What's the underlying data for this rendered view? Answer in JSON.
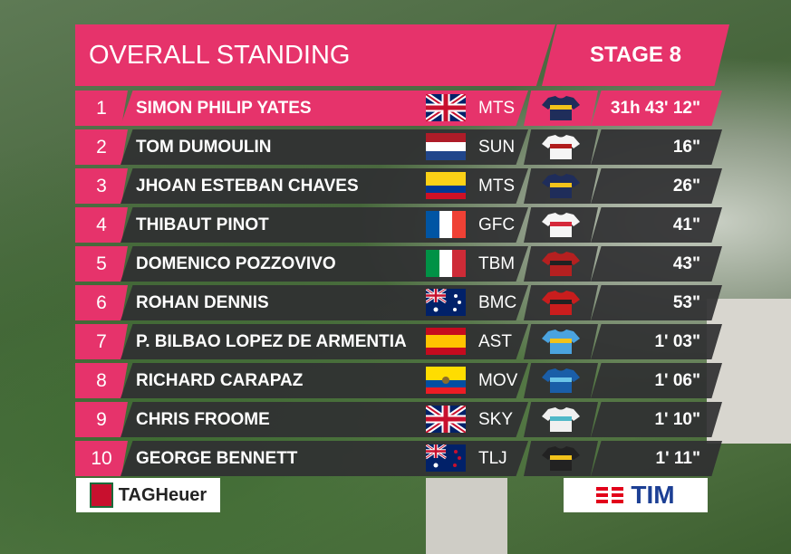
{
  "header": {
    "title": "OVERALL STANDING",
    "stage": "STAGE 8"
  },
  "table": {
    "rows": [
      {
        "rank": 1,
        "name": "SIMON PHILIP YATES",
        "team": "MTS",
        "time": "31h 43' 12\""
      },
      {
        "rank": 2,
        "name": "TOM DUMOULIN",
        "team": "SUN",
        "time": "16\""
      },
      {
        "rank": 3,
        "name": "JHOAN ESTEBAN CHAVES",
        "team": "MTS",
        "time": "26\""
      },
      {
        "rank": 4,
        "name": "THIBAUT PINOT",
        "team": "GFC",
        "time": "41\""
      },
      {
        "rank": 5,
        "name": "DOMENICO POZZOVIVO",
        "team": "TBM",
        "time": "43\""
      },
      {
        "rank": 6,
        "name": "ROHAN DENNIS",
        "team": "BMC",
        "time": "53\""
      },
      {
        "rank": 7,
        "name": "P. BILBAO LOPEZ DE ARMENTIA",
        "team": "AST",
        "time": "1' 03\""
      },
      {
        "rank": 8,
        "name": "RICHARD CARAPAZ",
        "team": "MOV",
        "time": "1' 06\""
      },
      {
        "rank": 9,
        "name": "CHRIS FROOME",
        "team": "SKY",
        "time": "1' 10\""
      },
      {
        "rank": 10,
        "name": "GEORGE BENNETT",
        "team": "TLJ",
        "time": "1' 11\""
      }
    ]
  },
  "sponsors": {
    "left": "TAGHeuer",
    "right": "TIM"
  }
}
